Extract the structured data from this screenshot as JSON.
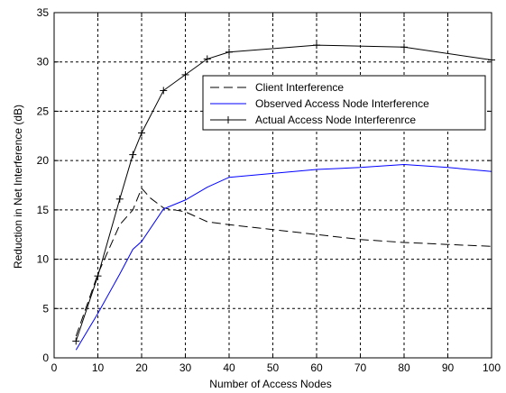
{
  "chart_data": {
    "type": "line",
    "title": "",
    "xlabel": "Number of Access Nodes",
    "ylabel": "Reduction in Net Interference (dB)",
    "xlim": [
      0,
      100
    ],
    "ylim": [
      0,
      35
    ],
    "xticks": [
      0,
      10,
      20,
      30,
      40,
      50,
      60,
      70,
      80,
      90,
      100
    ],
    "yticks": [
      0,
      5,
      10,
      15,
      20,
      25,
      30,
      35
    ],
    "grid": true,
    "legend_position": "top-right",
    "series": [
      {
        "name": "Client Interference",
        "color": "#000000",
        "line_style": "dashed",
        "marker": "none",
        "x": [
          5,
          10,
          15,
          18,
          20,
          22,
          25,
          30,
          35,
          40,
          50,
          60,
          70,
          80,
          90,
          100
        ],
        "y": [
          2.2,
          8.5,
          13.5,
          15,
          17.2,
          16.2,
          15.2,
          14.8,
          13.8,
          13.5,
          13,
          12.5,
          12,
          11.7,
          11.5,
          11.3
        ]
      },
      {
        "name": "Observed Access Node Interference",
        "color": "#0000ff",
        "line_style": "solid",
        "marker": "none",
        "x": [
          5,
          10,
          15,
          18,
          20,
          25,
          30,
          35,
          40,
          50,
          60,
          70,
          80,
          90,
          100
        ],
        "y": [
          0.8,
          4.5,
          8.5,
          11,
          11.8,
          15.1,
          16,
          17.3,
          18.3,
          18.7,
          19.1,
          19.3,
          19.6,
          19.3,
          18.9
        ]
      },
      {
        "name": "Actual Access Node Interferenrce",
        "color": "#000000",
        "line_style": "solid",
        "marker": "plus",
        "x": [
          5,
          10,
          15,
          18,
          20,
          25,
          30,
          35,
          40,
          60,
          80,
          100
        ],
        "y": [
          1.7,
          8.3,
          16.1,
          20.6,
          22.8,
          27.1,
          28.7,
          30.3,
          31,
          31.7,
          31.5,
          30.2
        ]
      }
    ]
  }
}
